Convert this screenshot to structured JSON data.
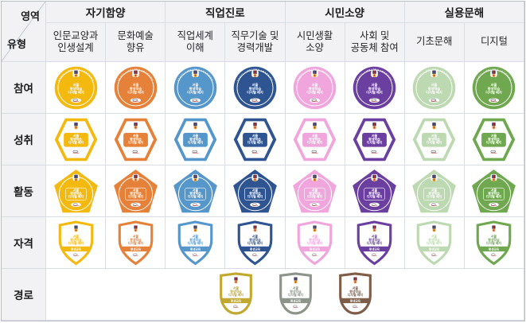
{
  "table": {
    "corner": {
      "top_right": "영역",
      "bottom_left": "유형"
    },
    "areas": [
      {
        "label": "자기함양"
      },
      {
        "label": "직업진로"
      },
      {
        "label": "시민소양"
      },
      {
        "label": "실용문해"
      }
    ],
    "types": [
      {
        "label": "인문교양과\n인생설계",
        "color": "#F4B90F"
      },
      {
        "label": "문화예술\n향유",
        "color": "#E58138"
      },
      {
        "label": "직업세계\n이해",
        "color": "#5596CB"
      },
      {
        "label": "직무기술 및\n경력개발",
        "color": "#2E5492"
      },
      {
        "label": "시민생활\n소양",
        "color": "#F0A5DC"
      },
      {
        "label": "사회 및\n공동체 참여",
        "color": "#6B3FA0"
      },
      {
        "label": "기초문해",
        "color": "#BDD9B1"
      },
      {
        "label": "디지털",
        "color": "#6FA84F"
      }
    ],
    "rows": [
      {
        "label": "참여",
        "key": "participation",
        "shape": "circle"
      },
      {
        "label": "성취",
        "key": "achievement",
        "shape": "hexagon"
      },
      {
        "label": "활동",
        "key": "activity",
        "shape": "pentagon"
      },
      {
        "label": "자격",
        "key": "qualification",
        "shape": "shield"
      },
      {
        "label": "경로",
        "key": "path",
        "shape": "rounded-shield"
      }
    ]
  },
  "badge": {
    "arc_text": "SEOUL LIFELONG LEARNING",
    "title_lines": [
      "서울",
      "평생학습",
      "디지털 배지"
    ],
    "band_text": "평생교육",
    "medal_colors": {
      "ribbon": "#2B3A67",
      "stripe": "#C03434",
      "medal": "#E8A838",
      "center": "#CC3344"
    }
  },
  "path_badges": [
    {
      "name": "gold",
      "color": "#C2A82E"
    },
    {
      "name": "silver",
      "color": "#8D948A"
    },
    {
      "name": "bronze",
      "color": "#7E5E49"
    }
  ],
  "grid_colors": {
    "border": "#dadde4",
    "header_bg": "#f2f2f4",
    "outer_border": "#b7bcc6"
  }
}
